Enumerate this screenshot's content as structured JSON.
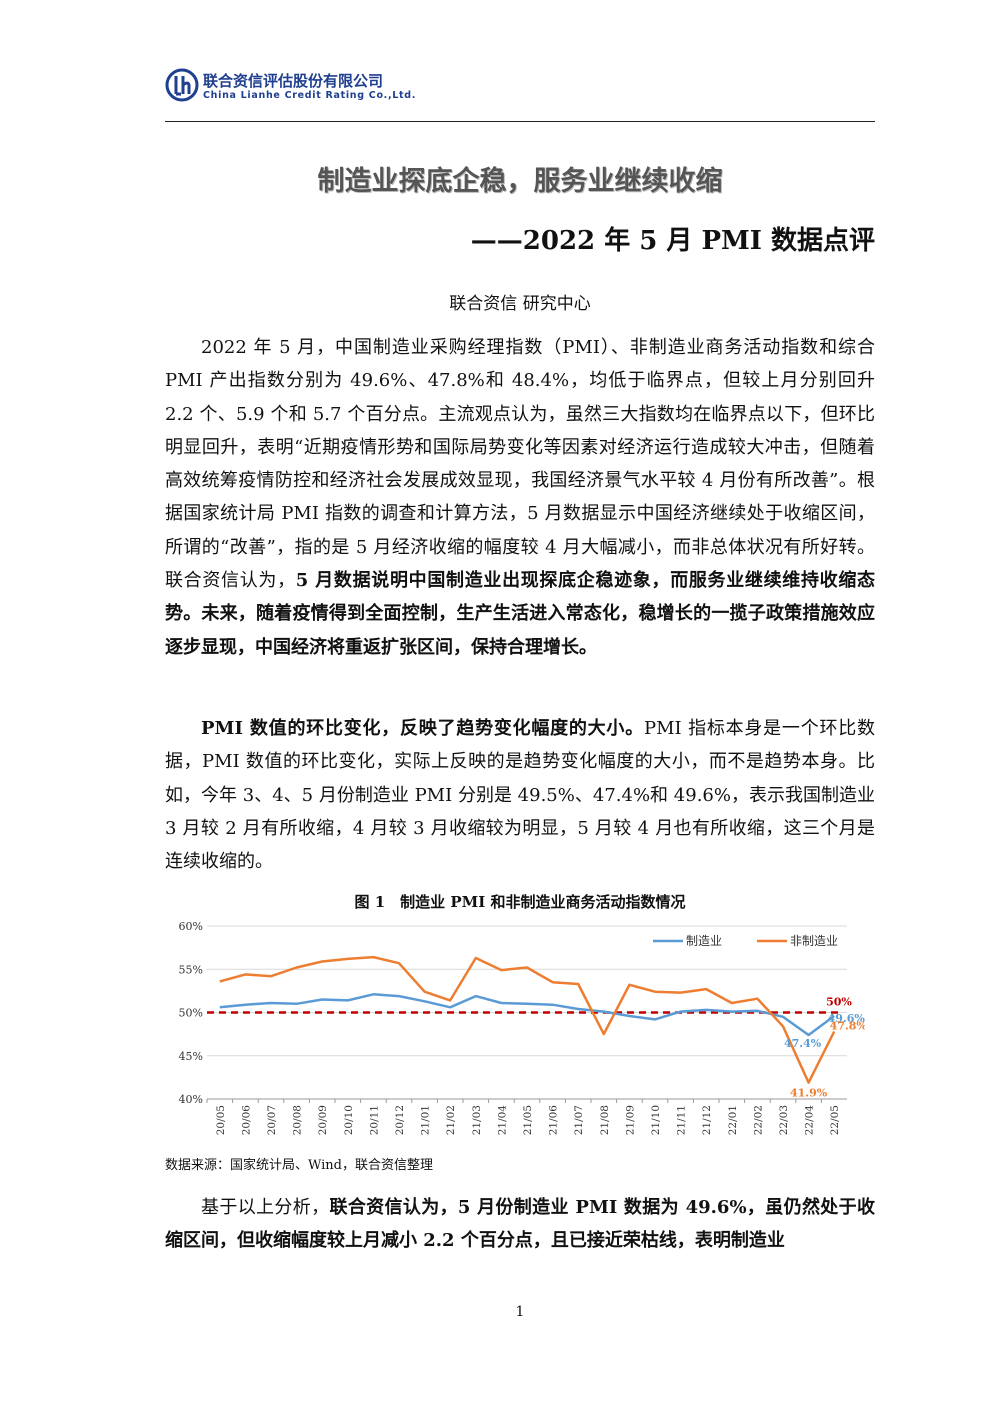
{
  "header": {
    "company_cn": "联合资信评估股份有限公司",
    "company_en": "China Lianhe Credit Rating Co.,Ltd.",
    "logo_icon": "lianhe-logo-icon",
    "brand_color": "#1f3f8f"
  },
  "title": "制造业探底企稳，服务业继续收缩",
  "subtitle": "——2022 年 5 月 PMI 数据点评",
  "authors": "联合资信 研究中心",
  "paragraphs": {
    "p1": {
      "normal": "2022 年 5 月，中国制造业采购经理指数（PMI）、非制造业商务活动指数和综合 PMI 产出指数分别为 49.6%、47.8%和 48.4%，均低于临界点，但较上月分别回升 2.2 个、5.9 个和 5.7 个百分点。主流观点认为，虽然三大指数均在临界点以下，但环比明显回升，表明“近期疫情形势和国际局势变化等因素对经济运行造成较大冲击，但随着高效统筹疫情防控和经济社会发展成效显现，我国经济景气水平较 4 月份有所改善”。根据国家统计局 PMI 指数的调查和计算方法，5 月数据显示中国经济继续处于收缩区间，所谓的“改善”，指的是 5 月经济收缩的幅度较 4 月大幅减小，而非总体状况有所好转。联合资信认为，",
      "bold": "5 月数据说明中国制造业出现探底企稳迹象，而服务业继续维持收缩态势。未来，随着疫情得到全面控制，生产生活进入常态化，稳增长的一揽子政策措施效应逐步显现，中国经济将重返扩张区间，保持合理增长。"
    },
    "p2": {
      "bold": "PMI 数值的环比变化，反映了趋势变化幅度的大小。",
      "normal": "PMI 指标本身是一个环比数据，PMI 数值的环比变化，实际上反映的是趋势变化幅度的大小，而不是趋势本身。比如，今年 3、4、5 月份制造业 PMI 分别是 49.5%、47.4%和 49.6%，表示我国制造业 3 月较 2 月有所收缩，4 月较 3 月收缩较为明显，5 月较 4 月也有所收缩，这三个月是连续收缩的。"
    },
    "p3": {
      "normal": "基于以上分析，",
      "bold": "联合资信认为，5 月份制造业 PMI 数据为 49.6%，虽仍然处于收缩区间，但收缩幅度较上月减小 2.2 个百分点，且已接近荣枯线，表明制造业"
    }
  },
  "figure": {
    "caption": "图 1　制造业 PMI 和非制造业商务活动指数情况",
    "source": "数据来源：国家统计局、Wind，联合资信整理"
  },
  "chart_data": {
    "type": "line",
    "x": [
      "20/05",
      "20/06",
      "20/07",
      "20/08",
      "20/09",
      "20/10",
      "20/11",
      "20/12",
      "21/01",
      "21/02",
      "21/03",
      "21/04",
      "21/05",
      "21/06",
      "21/07",
      "21/08",
      "21/09",
      "21/10",
      "21/11",
      "21/12",
      "22/01",
      "22/02",
      "22/03",
      "22/04",
      "22/05"
    ],
    "ylim": [
      40,
      60
    ],
    "yticks": [
      "40%",
      "45%",
      "50%",
      "55%",
      "60%"
    ],
    "series": [
      {
        "name": "制造业",
        "color": "#5b9bd5",
        "values": [
          50.6,
          50.9,
          51.1,
          51.0,
          51.5,
          51.4,
          52.1,
          51.9,
          51.3,
          50.6,
          51.9,
          51.1,
          51.0,
          50.9,
          50.4,
          50.1,
          49.6,
          49.2,
          50.1,
          50.3,
          50.1,
          50.2,
          49.5,
          47.4,
          49.6
        ]
      },
      {
        "name": "非制造业",
        "color": "#ed7d31",
        "values": [
          53.6,
          54.4,
          54.2,
          55.2,
          55.9,
          56.2,
          56.4,
          55.7,
          52.4,
          51.4,
          56.3,
          54.9,
          55.2,
          53.5,
          53.3,
          47.5,
          53.2,
          52.4,
          52.3,
          52.7,
          51.1,
          51.6,
          48.4,
          41.9,
          47.8
        ]
      }
    ],
    "threshold": {
      "value": 50,
      "label": "50%",
      "color": "#c00000"
    },
    "annotations": [
      {
        "label": "49.6%",
        "series": "制造业",
        "x": "22/05",
        "y": 49.6,
        "color": "#5b9bd5"
      },
      {
        "label": "47.4%",
        "series": "制造业",
        "x": "22/04",
        "y": 47.4,
        "color": "#5b9bd5"
      },
      {
        "label": "47.8%",
        "series": "非制造业",
        "x": "22/05",
        "y": 47.8,
        "color": "#ed7d31"
      },
      {
        "label": "41.9%",
        "series": "非制造业",
        "x": "22/04",
        "y": 41.9,
        "color": "#ed7d31"
      }
    ],
    "legend_position": "top-right",
    "grid": "horizontal"
  },
  "page_number": "1"
}
